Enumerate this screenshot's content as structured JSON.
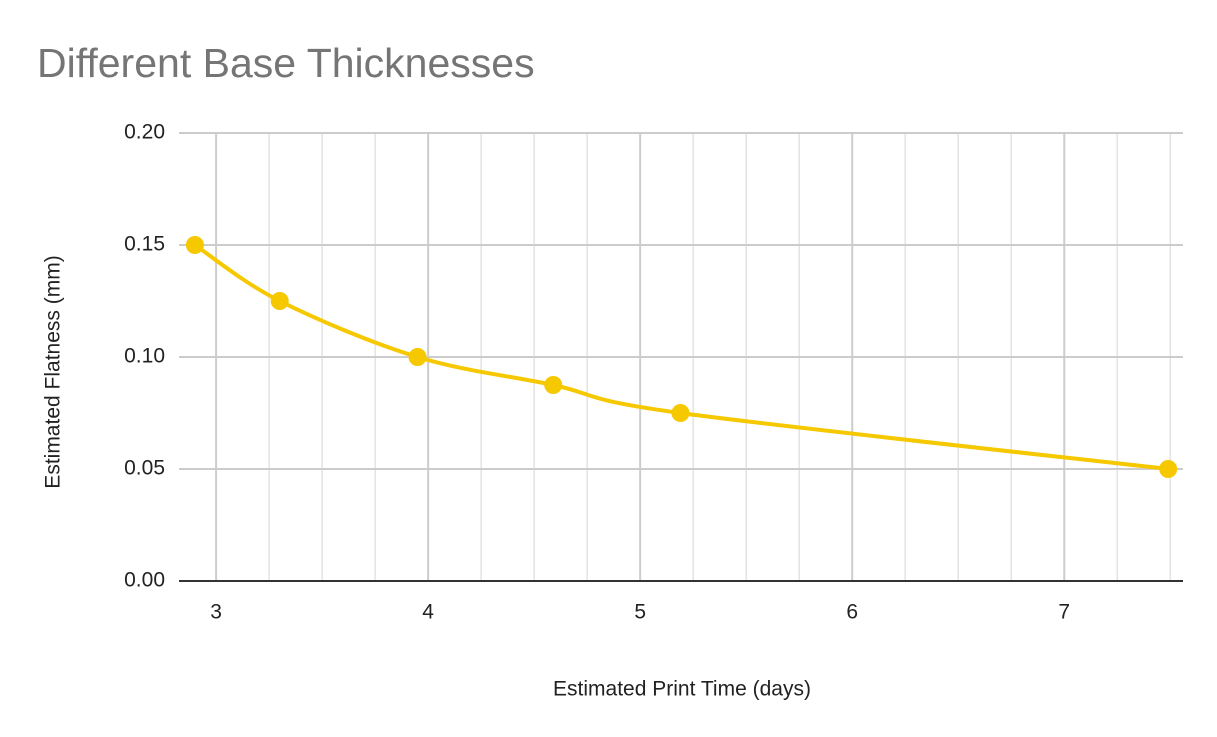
{
  "chart_data": {
    "type": "line",
    "title": "Different Base Thicknesses",
    "x_label": "Estimated Print Time (days)",
    "y_label": "Estimated Flatness (mm)",
    "x": [
      2.9,
      3.3,
      3.95,
      4.59,
      5.19,
      7.49
    ],
    "series": [
      {
        "name": "Estimated Flatness (mm)",
        "color": "#f6c800",
        "values": [
          0.15,
          0.125,
          0.1,
          0.0875,
          0.075,
          0.05
        ]
      }
    ],
    "xlim": [
      2.825,
      7.56
    ],
    "xticks": [
      3,
      4,
      5,
      6,
      7
    ],
    "x_minor_grid": [
      3.25,
      3.5,
      3.75,
      4.25,
      4.5,
      4.75,
      5.25,
      5.5,
      5.75,
      6.25,
      6.5,
      6.75,
      7.25,
      7.5
    ],
    "ylim": [
      0,
      0.2
    ],
    "yticks": [
      {
        "value": 0,
        "label": "0.00"
      },
      {
        "value": 0.05,
        "label": "0.05"
      },
      {
        "value": 0.1,
        "label": "0.10"
      },
      {
        "value": 0.15,
        "label": "0.15"
      },
      {
        "value": 0.2,
        "label": "0.20"
      }
    ],
    "grid": true,
    "smooth": true
  }
}
